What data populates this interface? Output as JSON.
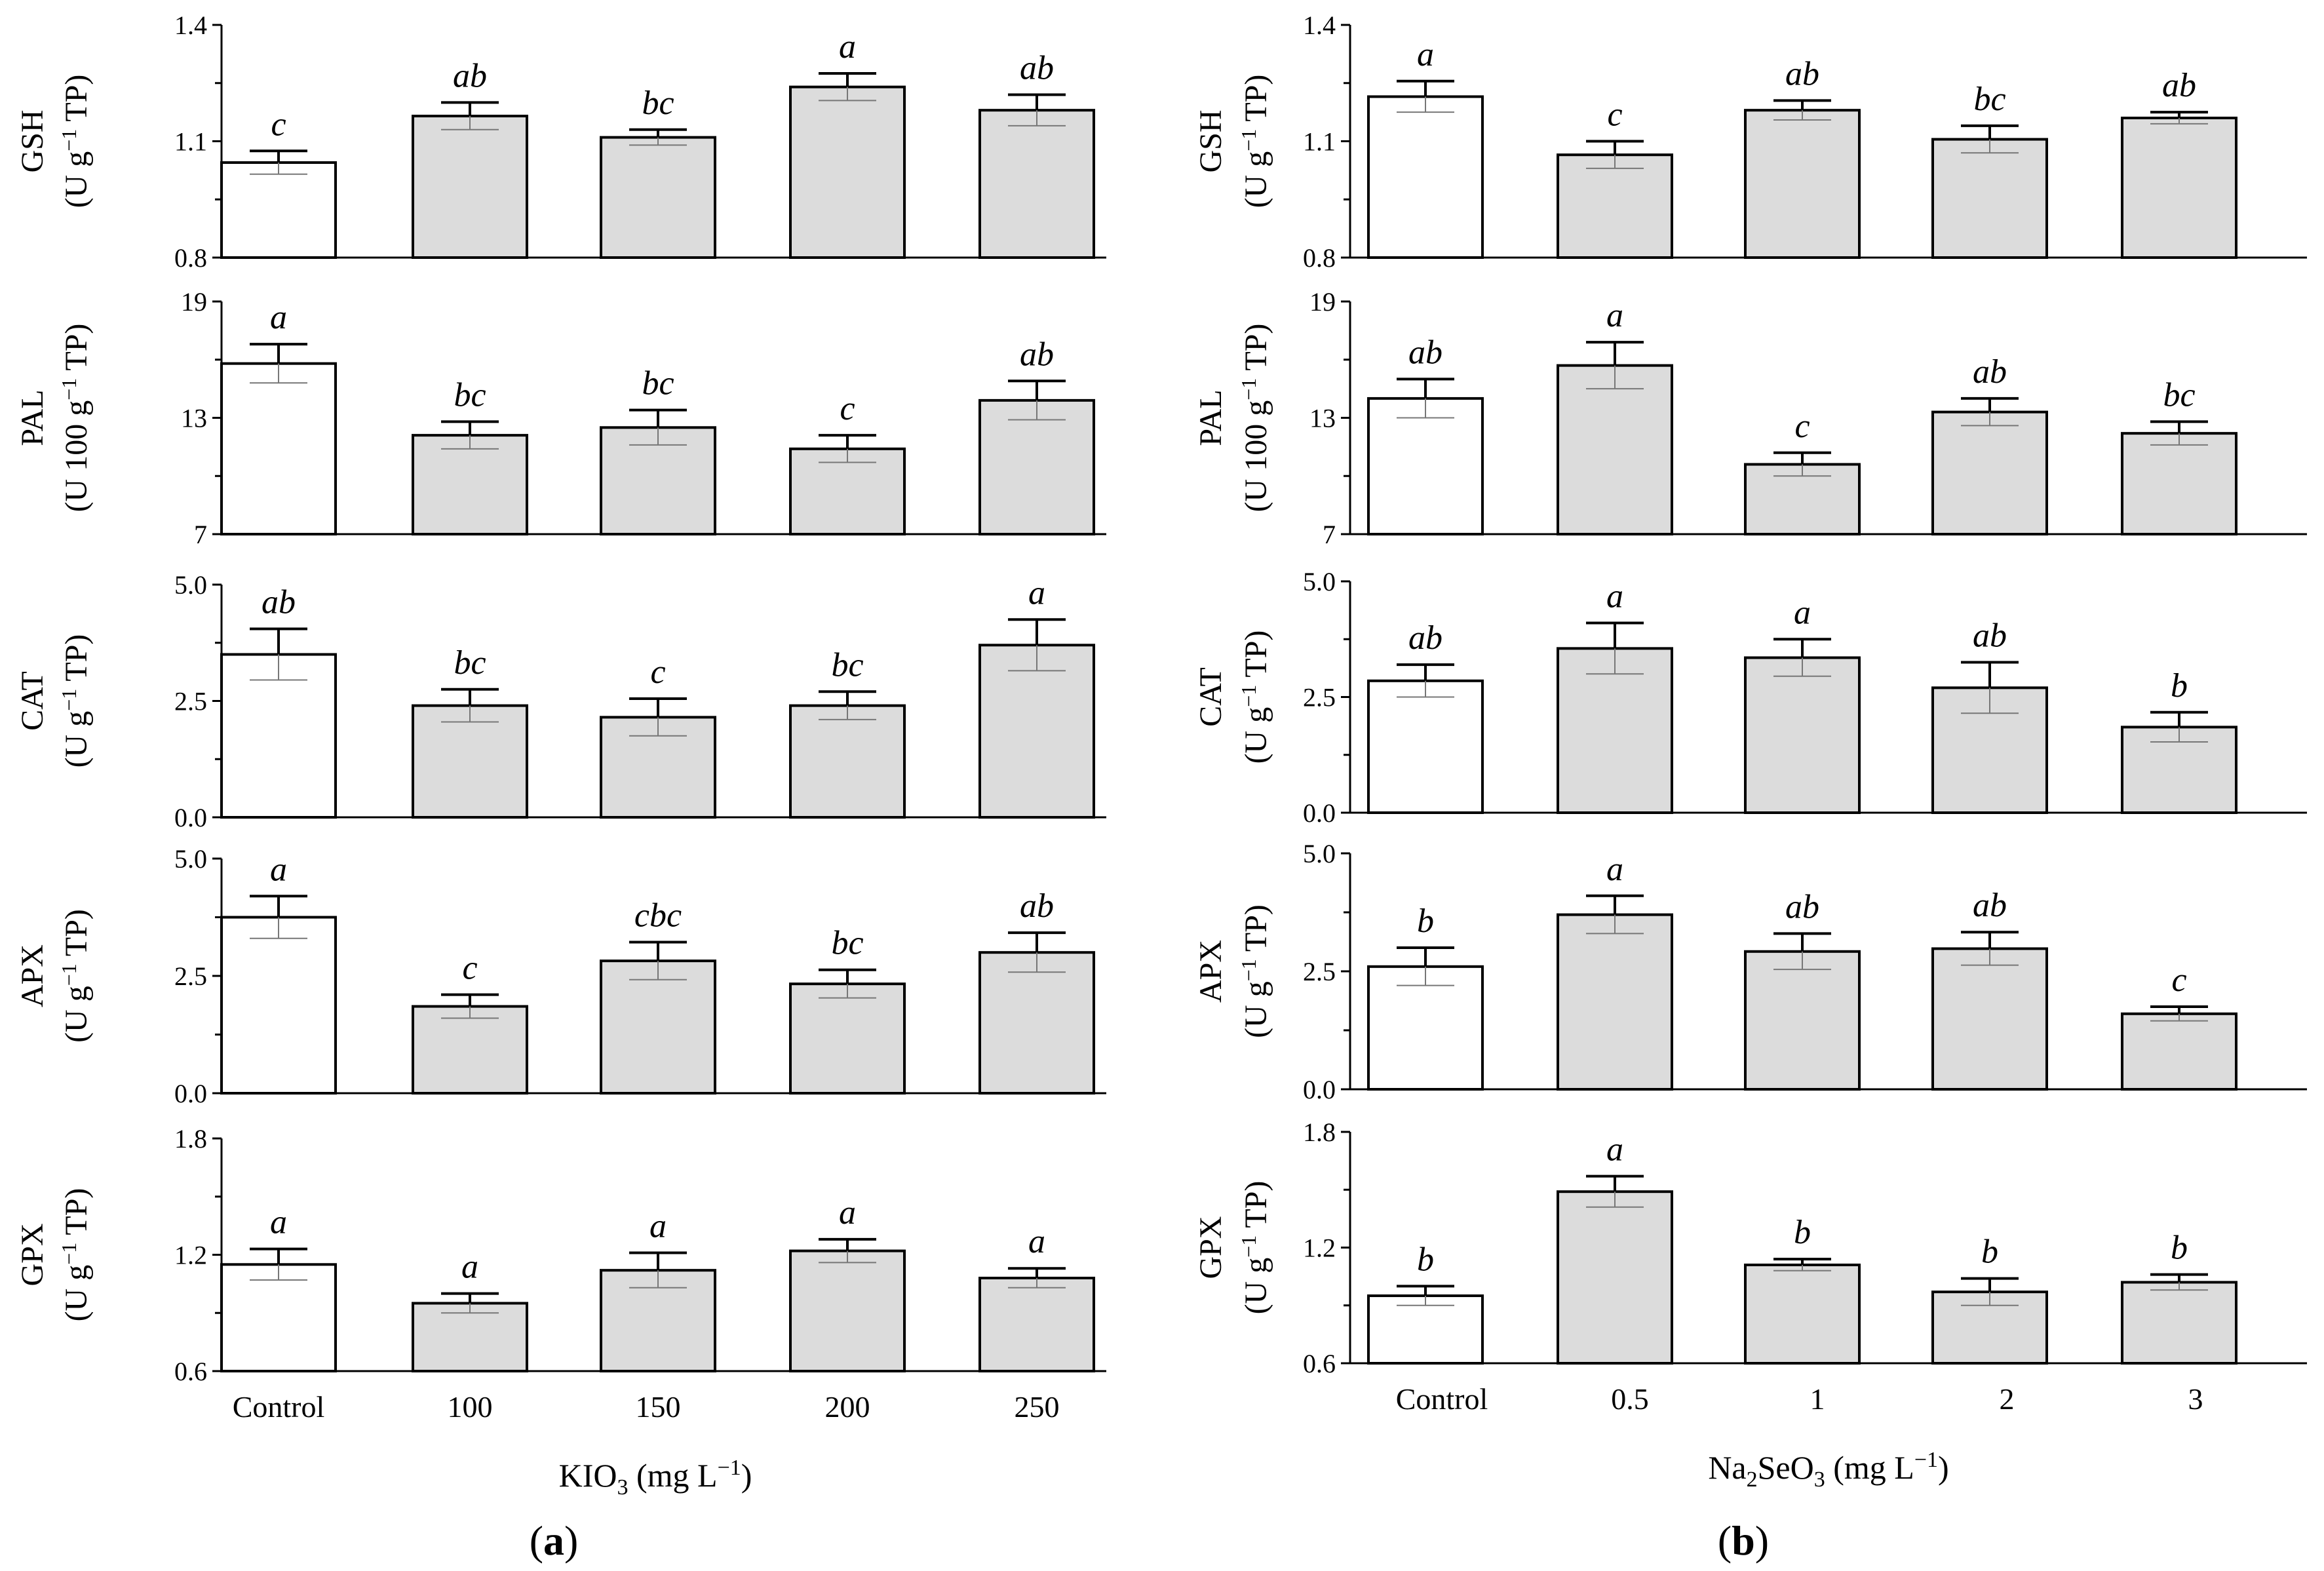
{
  "colors": {
    "control": "#ffffff",
    "treatment": "#dcdcdc",
    "stroke": "#000000",
    "background": "#ffffff"
  },
  "chart_data": [
    {
      "id": "a",
      "panel_label": "a",
      "type": "bar",
      "xlabel": {
        "base": "KIO",
        "sub": "3",
        "unit_pre": " (mg L",
        "sup": "−1",
        "unit_post": ")"
      },
      "categories": [
        "Control",
        "100",
        "150",
        "200",
        "250"
      ],
      "subplots": [
        {
          "name": "GSH",
          "ylabel_line1": "GSH",
          "ylabel_line2": {
            "pre": "(U g",
            "sup": "−1",
            "post": " TP)"
          },
          "ylim": [
            0.8,
            1.4
          ],
          "ticks": [
            "0.8",
            "1.1",
            "1.4"
          ],
          "values": [
            1.045,
            1.165,
            1.11,
            1.24,
            1.18
          ],
          "errors": [
            0.03,
            0.035,
            0.02,
            0.035,
            0.04
          ],
          "letters": [
            "c",
            "ab",
            "bc",
            "a",
            "ab"
          ]
        },
        {
          "name": "PAL",
          "ylabel_line1": "PAL",
          "ylabel_line2": {
            "pre": "(U 100 g",
            "sup": "−1",
            "post": " TP)"
          },
          "ylim": [
            7,
            19
          ],
          "ticks": [
            "7",
            "13",
            "19"
          ],
          "values": [
            15.8,
            12.1,
            12.5,
            11.4,
            13.9
          ],
          "errors": [
            1.0,
            0.7,
            0.9,
            0.7,
            1.0
          ],
          "letters": [
            "a",
            "bc",
            "bc",
            "c",
            "ab"
          ]
        },
        {
          "name": "CAT",
          "ylabel_line1": "CAT",
          "ylabel_line2": {
            "pre": "(U g",
            "sup": "−1",
            "post": " TP)"
          },
          "ylim": [
            0,
            5
          ],
          "ticks": [
            "0.0",
            "2.5",
            "5.0"
          ],
          "values": [
            3.5,
            2.4,
            2.15,
            2.4,
            3.7
          ],
          "errors": [
            0.55,
            0.35,
            0.4,
            0.3,
            0.55
          ],
          "letters": [
            "ab",
            "bc",
            "c",
            "bc",
            "a"
          ]
        },
        {
          "name": "APX",
          "ylabel_line1": "APX",
          "ylabel_line2": {
            "pre": "(U g",
            "sup": "−1",
            "post": " TP)"
          },
          "ylim": [
            0,
            5
          ],
          "ticks": [
            "0.0",
            "2.5",
            "5.0"
          ],
          "values": [
            3.75,
            1.85,
            2.82,
            2.33,
            3.0
          ],
          "errors": [
            0.45,
            0.25,
            0.4,
            0.3,
            0.42
          ],
          "letters": [
            "a",
            "c",
            "cbc",
            "bc",
            "ab"
          ]
        },
        {
          "name": "GPX",
          "ylabel_line1": "GPX",
          "ylabel_line2": {
            "pre": "(U g",
            "sup": "−1",
            "post": " TP)"
          },
          "ylim": [
            0.6,
            1.8
          ],
          "ticks": [
            "0.6",
            "1.2",
            "1.8"
          ],
          "values": [
            1.15,
            0.95,
            1.12,
            1.22,
            1.08
          ],
          "errors": [
            0.08,
            0.05,
            0.09,
            0.06,
            0.05
          ],
          "letters": [
            "a",
            "a",
            "a",
            "a",
            "a"
          ]
        }
      ]
    },
    {
      "id": "b",
      "panel_label": "b",
      "type": "bar",
      "xlabel": {
        "base": "Na",
        "sub": "2",
        "mid": "SeO",
        "sub2": "3",
        "unit_pre": " (mg L",
        "sup": "−1",
        "unit_post": ")"
      },
      "categories": [
        "Control",
        "0.5",
        "1",
        "2",
        "3"
      ],
      "subplots": [
        {
          "name": "GSH",
          "ylabel_line1": "GSH",
          "ylabel_line2": {
            "pre": "(U g",
            "sup": "−1",
            "post": " TP)"
          },
          "ylim": [
            0.8,
            1.4
          ],
          "ticks": [
            "0.8",
            "1.1",
            "1.4"
          ],
          "values": [
            1.215,
            1.065,
            1.18,
            1.105,
            1.16
          ],
          "errors": [
            0.04,
            0.035,
            0.025,
            0.035,
            0.015
          ],
          "letters": [
            "a",
            "c",
            "ab",
            "bc",
            "ab"
          ]
        },
        {
          "name": "PAL",
          "ylabel_line1": "PAL",
          "ylabel_line2": {
            "pre": "(U 100 g",
            "sup": "−1",
            "post": " TP)"
          },
          "ylim": [
            7,
            19
          ],
          "ticks": [
            "7",
            "13",
            "19"
          ],
          "values": [
            14.0,
            15.7,
            10.6,
            13.3,
            12.2
          ],
          "errors": [
            1.0,
            1.2,
            0.6,
            0.7,
            0.6
          ],
          "letters": [
            "ab",
            "a",
            "c",
            "ab",
            "bc"
          ]
        },
        {
          "name": "CAT",
          "ylabel_line1": "CAT",
          "ylabel_line2": {
            "pre": "(U g",
            "sup": "−1",
            "post": " TP)"
          },
          "ylim": [
            0,
            5
          ],
          "ticks": [
            "0.0",
            "2.5",
            "5.0"
          ],
          "values": [
            2.85,
            3.55,
            3.35,
            2.7,
            1.85
          ],
          "errors": [
            0.35,
            0.55,
            0.4,
            0.55,
            0.32
          ],
          "letters": [
            "ab",
            "a",
            "a",
            "ab",
            "b"
          ]
        },
        {
          "name": "APX",
          "ylabel_line1": "APX",
          "ylabel_line2": {
            "pre": "(U g",
            "sup": "−1",
            "post": " TP)"
          },
          "ylim": [
            0,
            5
          ],
          "ticks": [
            "0.0",
            "2.5",
            "5.0"
          ],
          "values": [
            2.6,
            3.7,
            2.92,
            2.98,
            1.6
          ],
          "errors": [
            0.4,
            0.4,
            0.38,
            0.35,
            0.15
          ],
          "letters": [
            "b",
            "a",
            "ab",
            "ab",
            "c"
          ]
        },
        {
          "name": "GPX",
          "ylabel_line1": "GPX",
          "ylabel_line2": {
            "pre": "(U g",
            "sup": "−1",
            "post": " TP)"
          },
          "ylim": [
            0.6,
            1.8
          ],
          "ticks": [
            "0.6",
            "1.2",
            "1.8"
          ],
          "values": [
            0.95,
            1.49,
            1.11,
            0.97,
            1.02
          ],
          "errors": [
            0.05,
            0.08,
            0.03,
            0.07,
            0.04
          ],
          "letters": [
            "b",
            "a",
            "b",
            "b",
            "b"
          ]
        }
      ]
    }
  ]
}
